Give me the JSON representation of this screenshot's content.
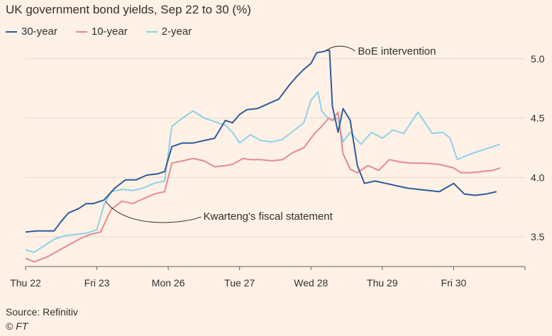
{
  "chart_data": {
    "type": "line",
    "title": "UK government bond yields, Sep 22 to 30 (%)",
    "xlabel": "",
    "ylabel": "",
    "ylim": [
      3.25,
      5.1
    ],
    "xlim": [
      0,
      7
    ],
    "x_ticks": [
      {
        "x": 0,
        "label": "Thu 22"
      },
      {
        "x": 1,
        "label": "Fri 23"
      },
      {
        "x": 2,
        "label": "Mon 26"
      },
      {
        "x": 3,
        "label": "Tue 27"
      },
      {
        "x": 4,
        "label": "Wed 28"
      },
      {
        "x": 5,
        "label": "Thu 29"
      },
      {
        "x": 6,
        "label": "Fri 30"
      }
    ],
    "y_ticks": [
      {
        "y": 3.5,
        "label": "3.5"
      },
      {
        "y": 4.0,
        "label": "4.0"
      },
      {
        "y": 4.5,
        "label": "4.5"
      },
      {
        "y": 5.0,
        "label": "5.0"
      }
    ],
    "series": [
      {
        "name": "30-year",
        "color": "#2e5b9a",
        "x": [
          0,
          0.15,
          0.3,
          0.4,
          0.5,
          0.6,
          0.75,
          0.85,
          0.95,
          1.1,
          1.25,
          1.4,
          1.55,
          1.7,
          1.85,
          1.95,
          2.05,
          2.2,
          2.35,
          2.5,
          2.65,
          2.8,
          2.9,
          3.0,
          3.1,
          3.25,
          3.4,
          3.55,
          3.7,
          3.8,
          3.9,
          4.0,
          4.08,
          4.18,
          4.22,
          4.26,
          4.3,
          4.38,
          4.45,
          4.55,
          4.65,
          4.75,
          4.9,
          5.05,
          5.2,
          5.35,
          5.5,
          5.65,
          5.8,
          6.0,
          6.15,
          6.3,
          6.45,
          6.6
        ],
        "y": [
          3.54,
          3.55,
          3.55,
          3.55,
          3.63,
          3.7,
          3.74,
          3.78,
          3.78,
          3.81,
          3.91,
          3.98,
          3.98,
          4.02,
          4.03,
          4.05,
          4.26,
          4.29,
          4.29,
          4.31,
          4.33,
          4.48,
          4.46,
          4.53,
          4.57,
          4.58,
          4.62,
          4.66,
          4.78,
          4.85,
          4.91,
          4.96,
          5.05,
          5.06,
          5.07,
          5.07,
          4.6,
          4.38,
          4.58,
          4.48,
          4.1,
          3.95,
          3.97,
          3.95,
          3.93,
          3.91,
          3.9,
          3.89,
          3.88,
          3.95,
          3.86,
          3.85,
          3.86,
          3.88
        ]
      },
      {
        "name": "10-year",
        "color": "#e38a94",
        "x": [
          0,
          0.12,
          0.3,
          0.45,
          0.6,
          0.75,
          0.9,
          1.05,
          1.2,
          1.35,
          1.5,
          1.65,
          1.8,
          1.95,
          2.05,
          2.2,
          2.35,
          2.5,
          2.65,
          2.8,
          2.9,
          3.05,
          3.15,
          3.3,
          3.45,
          3.6,
          3.75,
          3.9,
          4.05,
          4.15,
          4.25,
          4.3,
          4.38,
          4.45,
          4.55,
          4.65,
          4.8,
          4.95,
          5.1,
          5.25,
          5.4,
          5.6,
          5.8,
          6.0,
          6.1,
          6.25,
          6.4,
          6.55,
          6.65
        ],
        "y": [
          3.32,
          3.29,
          3.33,
          3.38,
          3.43,
          3.48,
          3.52,
          3.54,
          3.73,
          3.8,
          3.78,
          3.82,
          3.86,
          3.88,
          4.12,
          4.14,
          4.16,
          4.14,
          4.09,
          4.1,
          4.11,
          4.16,
          4.15,
          4.15,
          4.14,
          4.15,
          4.21,
          4.25,
          4.37,
          4.43,
          4.5,
          4.48,
          4.55,
          4.2,
          4.07,
          4.04,
          4.1,
          4.06,
          4.15,
          4.13,
          4.12,
          4.12,
          4.11,
          4.08,
          4.04,
          4.04,
          4.05,
          4.06,
          4.08
        ]
      },
      {
        "name": "2-year",
        "color": "#8dd3e8",
        "x": [
          0,
          0.12,
          0.25,
          0.4,
          0.55,
          0.7,
          0.85,
          1.0,
          1.1,
          1.2,
          1.35,
          1.5,
          1.65,
          1.8,
          1.95,
          2.05,
          2.2,
          2.35,
          2.5,
          2.65,
          2.8,
          2.9,
          3.0,
          3.15,
          3.3,
          3.45,
          3.6,
          3.75,
          3.9,
          4.0,
          4.1,
          4.15,
          4.22,
          4.3,
          4.38,
          4.45,
          4.55,
          4.7,
          4.85,
          5.0,
          5.15,
          5.3,
          5.5,
          5.7,
          5.85,
          5.95,
          6.05,
          6.2,
          6.35,
          6.5,
          6.65
        ],
        "y": [
          3.39,
          3.37,
          3.42,
          3.48,
          3.51,
          3.52,
          3.53,
          3.56,
          3.77,
          3.88,
          3.9,
          3.89,
          3.91,
          3.95,
          3.97,
          4.43,
          4.5,
          4.56,
          4.5,
          4.47,
          4.44,
          4.38,
          4.29,
          4.36,
          4.31,
          4.3,
          4.32,
          4.39,
          4.46,
          4.65,
          4.72,
          4.56,
          4.51,
          4.48,
          4.5,
          4.3,
          4.38,
          4.28,
          4.38,
          4.33,
          4.4,
          4.37,
          4.55,
          4.37,
          4.38,
          4.33,
          4.15,
          4.19,
          4.22,
          4.25,
          4.28
        ]
      }
    ],
    "annotations": [
      {
        "text": "BoE intervention",
        "x": 4.22,
        "y": 5.07
      },
      {
        "text": "Kwarteng's fiscal statement",
        "x": 1.12,
        "y": 3.8
      }
    ],
    "legend_position": "top-left"
  },
  "footer": {
    "source": "Source: Refinitiv",
    "credit": "© FT"
  }
}
